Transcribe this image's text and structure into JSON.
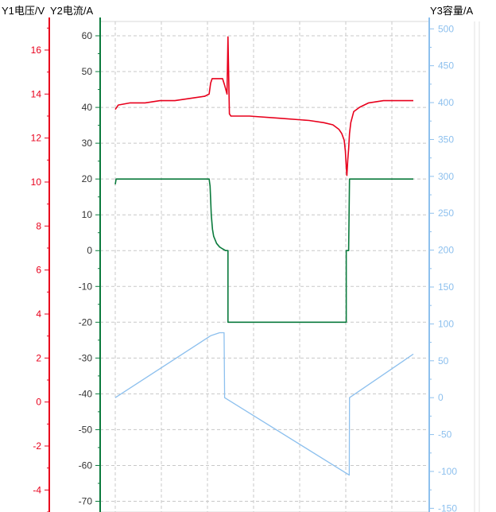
{
  "chart_data": {
    "type": "line",
    "title": "",
    "grid": true,
    "axes": {
      "y1": {
        "label": "Y1电压/V",
        "color": "#e8001c",
        "range": [
          -5,
          17.3
        ],
        "ticks": [
          "-4",
          "-2",
          "0",
          "2",
          "4",
          "6",
          "8",
          "10",
          "12",
          "14",
          "16"
        ],
        "side": "left-outer"
      },
      "y2": {
        "label": "Y2电流/A",
        "color": "#0a7a3c",
        "range": [
          -73,
          64
        ],
        "ticks": [
          "-70",
          "-60",
          "-50",
          "-40",
          "-30",
          "-20",
          "-10",
          "0",
          "10",
          "20",
          "30",
          "40",
          "50",
          "60"
        ],
        "side": "left-inner"
      },
      "y3": {
        "label": "Y3容量/A",
        "color": "#8dc0ee",
        "range": [
          -155,
          510
        ],
        "ticks": [
          "-150",
          "-100",
          "-50",
          "0",
          "50",
          "100",
          "150",
          "200",
          "250",
          "300",
          "350",
          "400",
          "450",
          "500"
        ],
        "side": "right"
      }
    },
    "x": {
      "range": [
        0,
        100
      ],
      "ticks": []
    },
    "series": [
      {
        "axis": "y1",
        "color": "#e8001c",
        "points": [
          [
            0,
            13.3
          ],
          [
            1,
            13.5
          ],
          [
            5,
            13.6
          ],
          [
            10,
            13.6
          ],
          [
            15,
            13.7
          ],
          [
            20,
            13.7
          ],
          [
            25,
            13.8
          ],
          [
            30,
            13.9
          ],
          [
            31.5,
            14.0
          ],
          [
            32,
            14.5
          ],
          [
            32.5,
            14.7
          ],
          [
            36,
            14.7
          ],
          [
            36.7,
            14.4
          ],
          [
            37.5,
            14.0
          ],
          [
            37.8,
            16.6
          ],
          [
            38.3,
            13.1
          ],
          [
            38.8,
            13.0
          ],
          [
            45,
            13.0
          ],
          [
            55,
            12.9
          ],
          [
            65,
            12.8
          ],
          [
            70,
            12.7
          ],
          [
            73,
            12.6
          ],
          [
            75,
            12.4
          ],
          [
            76,
            12.2
          ],
          [
            76.8,
            11.9
          ],
          [
            77.2,
            11.4
          ],
          [
            77.5,
            10.7
          ],
          [
            77.7,
            10.3
          ],
          [
            78,
            11.0
          ],
          [
            78.3,
            11.5
          ],
          [
            78.6,
            12.2
          ],
          [
            79,
            12.7
          ],
          [
            80,
            13.2
          ],
          [
            82,
            13.4
          ],
          [
            85,
            13.6
          ],
          [
            90,
            13.7
          ],
          [
            100,
            13.7
          ]
        ]
      },
      {
        "axis": "y2",
        "color": "#0a7a3c",
        "points": [
          [
            0,
            18.5
          ],
          [
            0.3,
            20
          ],
          [
            31.5,
            20
          ],
          [
            31.8,
            18
          ],
          [
            32.2,
            10
          ],
          [
            32.6,
            6
          ],
          [
            33,
            4
          ],
          [
            34,
            2
          ],
          [
            35,
            1
          ],
          [
            36,
            0.5
          ],
          [
            37,
            0
          ],
          [
            37.8,
            0
          ],
          [
            37.8,
            -20
          ],
          [
            77.5,
            -20
          ],
          [
            77.5,
            0
          ],
          [
            78.3,
            0
          ],
          [
            78.6,
            20
          ],
          [
            100,
            20
          ]
        ]
      },
      {
        "axis": "y3",
        "color": "#8dc0ee",
        "points": [
          [
            0,
            0
          ],
          [
            32,
            84
          ],
          [
            35,
            88
          ],
          [
            36.5,
            88
          ],
          [
            36.7,
            0
          ],
          [
            78.5,
            -105
          ],
          [
            78.6,
            0
          ],
          [
            100,
            59
          ]
        ]
      }
    ]
  }
}
